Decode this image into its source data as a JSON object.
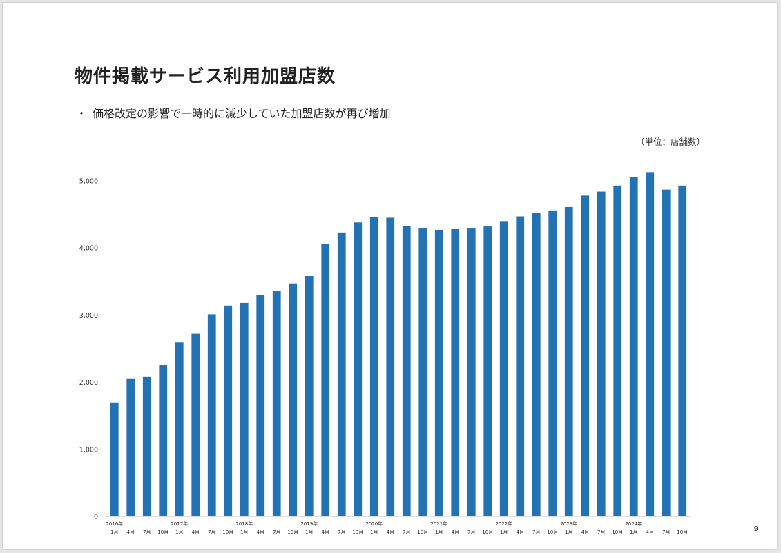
{
  "slide": {
    "title": "物件掲載サービス利用加盟店数",
    "bullet_marker": "・",
    "bullet": "価格改定の影響で一時的に減少していた加盟店数が再び増加",
    "unit": "（単位：店舗数）",
    "page_number": "9"
  },
  "colors": {
    "bar": "#2272b4",
    "axis": "#bfbfbf",
    "text": "#222222",
    "tick": "#333333"
  },
  "chart_data": {
    "type": "bar",
    "title": "",
    "xlabel": "",
    "ylabel": "",
    "ylim": [
      0,
      5000
    ],
    "yticks": [
      0,
      1000,
      2000,
      3000,
      4000,
      5000
    ],
    "ytick_labels": [
      "0",
      "1,000",
      "2,000",
      "3,000",
      "4,000",
      "5,000"
    ],
    "grid": false,
    "categories": [
      "2016年 1月",
      "2016年 4月",
      "2016年 7月",
      "2016年 10月",
      "2017年 1月",
      "2017年 4月",
      "2017年 7月",
      "2017年 10月",
      "2018年 1月",
      "2018年 4月",
      "2018年 7月",
      "2018年 10月",
      "2019年 1月",
      "2019年 4月",
      "2019年 7月",
      "2019年 10月",
      "2020年 1月",
      "2020年 4月",
      "2020年 7月",
      "2020年 10月",
      "2021年 1月",
      "2021年 4月",
      "2021年 7月",
      "2021年 10月",
      "2022年 1月",
      "2022年 4月",
      "2022年 7月",
      "2022年 10月",
      "2023年 1月",
      "2023年 4月",
      "2023年 7月",
      "2023年 10月",
      "2024年 1月",
      "2024年 4月",
      "2024年 7月",
      "2024年 10月"
    ],
    "month_labels": [
      "1月",
      "4月",
      "7月",
      "10月",
      "1月",
      "4月",
      "7月",
      "10月",
      "1月",
      "4月",
      "7月",
      "10月",
      "1月",
      "4月",
      "7月",
      "10月",
      "1月",
      "4月",
      "7月",
      "10月",
      "1月",
      "4月",
      "7月",
      "10月",
      "1月",
      "4月",
      "7月",
      "10月",
      "1月",
      "4月",
      "7月",
      "10月",
      "1月",
      "4月",
      "7月",
      "10月"
    ],
    "year_labels": [
      "2016年",
      "2017年",
      "2018年",
      "2019年",
      "2020年",
      "2021年",
      "2022年",
      "2023年",
      "2024年"
    ],
    "values": [
      1690,
      2050,
      2080,
      2260,
      2590,
      2720,
      3010,
      3140,
      3180,
      3300,
      3360,
      3470,
      3580,
      4060,
      4230,
      4380,
      4460,
      4450,
      4330,
      4300,
      4270,
      4280,
      4300,
      4320,
      4400,
      4470,
      4520,
      4560,
      4610,
      4780,
      4840,
      4930,
      5060,
      5130,
      4870,
      4930
    ]
  }
}
